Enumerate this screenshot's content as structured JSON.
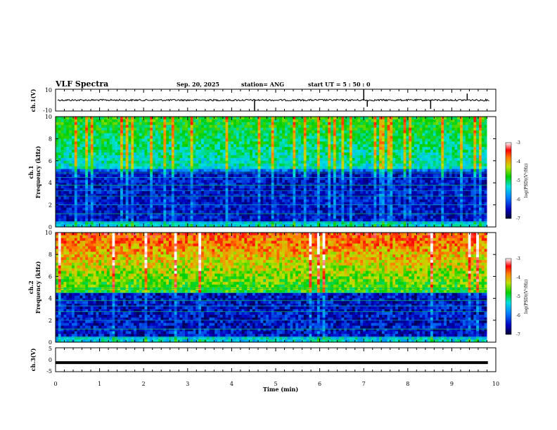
{
  "header": {
    "title": "VLF Spectra",
    "date": "Sep. 20, 2025",
    "station": "station= ANG",
    "start": "start  UT =   5  : 50 : 0"
  },
  "colors": {
    "background": "#ffffff",
    "axis": "#000000",
    "trace": "#000000"
  },
  "chart_data": [
    {
      "id": "ch1-waveform",
      "type": "line",
      "ylabel": "ch.1(V)",
      "ylim": [
        -10,
        10
      ],
      "yticks": [
        "10",
        "-10"
      ],
      "xlim": [
        0,
        10
      ],
      "baseline": 0,
      "spikes": [
        {
          "x": 7.0,
          "y": 10
        },
        {
          "x": 7.08,
          "y": -6
        },
        {
          "x": 4.52,
          "y": -10
        },
        {
          "x": 8.52,
          "y": -8
        },
        {
          "x": 9.35,
          "y": 6
        }
      ]
    },
    {
      "id": "ch1-spectrogram",
      "type": "heatmap",
      "ylabel_top": "ch.1",
      "ylabel": "Frequency (kHz)",
      "ylim": [
        0,
        10
      ],
      "yticks": [
        "0",
        "2",
        "4",
        "6",
        "8",
        "10"
      ],
      "xlim": [
        0,
        9.8
      ],
      "colorbar": {
        "label": "log(PSD)(V²/Hz)",
        "range": [
          -7,
          -3
        ],
        "ticks": [
          "-3",
          "-4",
          "-5",
          "-6",
          "-7"
        ]
      }
    },
    {
      "id": "ch2-spectrogram",
      "type": "heatmap",
      "ylabel_top": "ch.2",
      "ylabel": "Frequency (kHz)",
      "ylim": [
        0,
        10
      ],
      "yticks": [
        "0",
        "2",
        "4",
        "6",
        "8",
        "10"
      ],
      "xlim": [
        0,
        9.8
      ],
      "colorbar": {
        "label": "log(PSD)(V²/Hz)",
        "range": [
          -7,
          -3
        ],
        "ticks": [
          "-3",
          "-4",
          "-5",
          "-6",
          "-7"
        ]
      }
    },
    {
      "id": "ch3-waveform",
      "type": "line",
      "ylabel": "ch.3(V)",
      "ylim": [
        -5,
        5
      ],
      "yticks": [
        "5",
        "0",
        "-5"
      ],
      "xlim": [
        0,
        10
      ],
      "baseline": -1.2
    }
  ],
  "xaxis": {
    "label": "Time  (min)",
    "range": [
      0,
      10
    ],
    "ticks": [
      "0",
      "1",
      "2",
      "3",
      "4",
      "5",
      "6",
      "7",
      "8",
      "9",
      "10"
    ]
  }
}
